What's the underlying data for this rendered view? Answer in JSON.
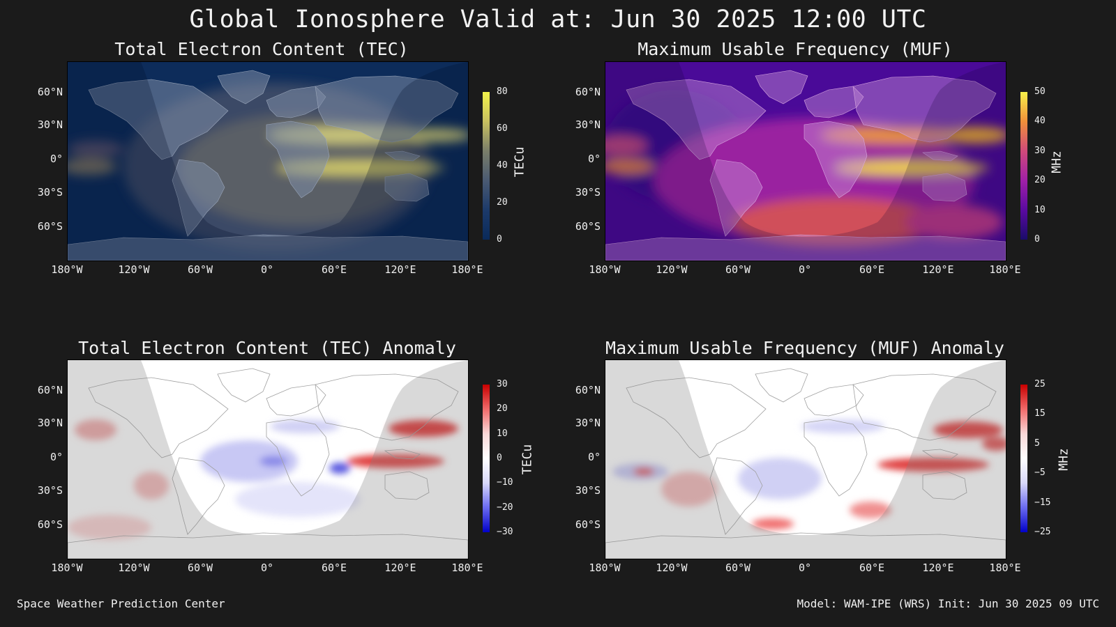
{
  "title": "Global Ionosphere Valid at: Jun 30 2025 12:00 UTC",
  "footer": {
    "left": "Space Weather Prediction Center",
    "right": "Model: WAM-IPE (WRS) Init: Jun 30 2025 09 UTC"
  },
  "axes": {
    "lat_labels": [
      "60°N",
      "30°N",
      "0°",
      "30°S",
      "60°S"
    ],
    "lon_labels": [
      "180°W",
      "120°W",
      "60°W",
      "0°",
      "60°E",
      "120°E",
      "180°E"
    ]
  },
  "panels": {
    "tec": {
      "title": "Total Electron Content (TEC)",
      "unit": "TECu",
      "colorbar_ticks": [
        "80",
        "60",
        "40",
        "20",
        "0"
      ],
      "colors": [
        "#0a2a5a",
        "#1c3a6a",
        "#4a5a72",
        "#7a7e6a",
        "#c8c060",
        "#f2f24a"
      ]
    },
    "muf": {
      "title": "Maximum Usable Frequency (MUF)",
      "unit": "MHz",
      "colorbar_ticks": [
        "50",
        "40",
        "30",
        "20",
        "10",
        "0"
      ],
      "colors": [
        "#1a0c6a",
        "#5a0aa0",
        "#a020a8",
        "#d04a7a",
        "#f0903a",
        "#f6f04a"
      ]
    },
    "tec_anomaly": {
      "title": "Total Electron Content (TEC) Anomaly",
      "unit": "TECu",
      "colorbar_ticks": [
        "30",
        "20",
        "10",
        "0",
        "−10",
        "−20",
        "−30"
      ],
      "colors": [
        "#0000c8",
        "#6a6af0",
        "#d8d8fa",
        "#ffffff",
        "#fad8d8",
        "#f06a6a",
        "#c80000"
      ]
    },
    "muf_anomaly": {
      "title": "Maximum Usable Frequency (MUF) Anomaly",
      "unit": "MHz",
      "colorbar_ticks": [
        "25",
        "15",
        "5",
        "−5",
        "−15",
        "−25"
      ],
      "colors": [
        "#0000c8",
        "#6a6af0",
        "#d8d8fa",
        "#ffffff",
        "#fad8d8",
        "#f06a6a",
        "#c80000"
      ]
    }
  }
}
